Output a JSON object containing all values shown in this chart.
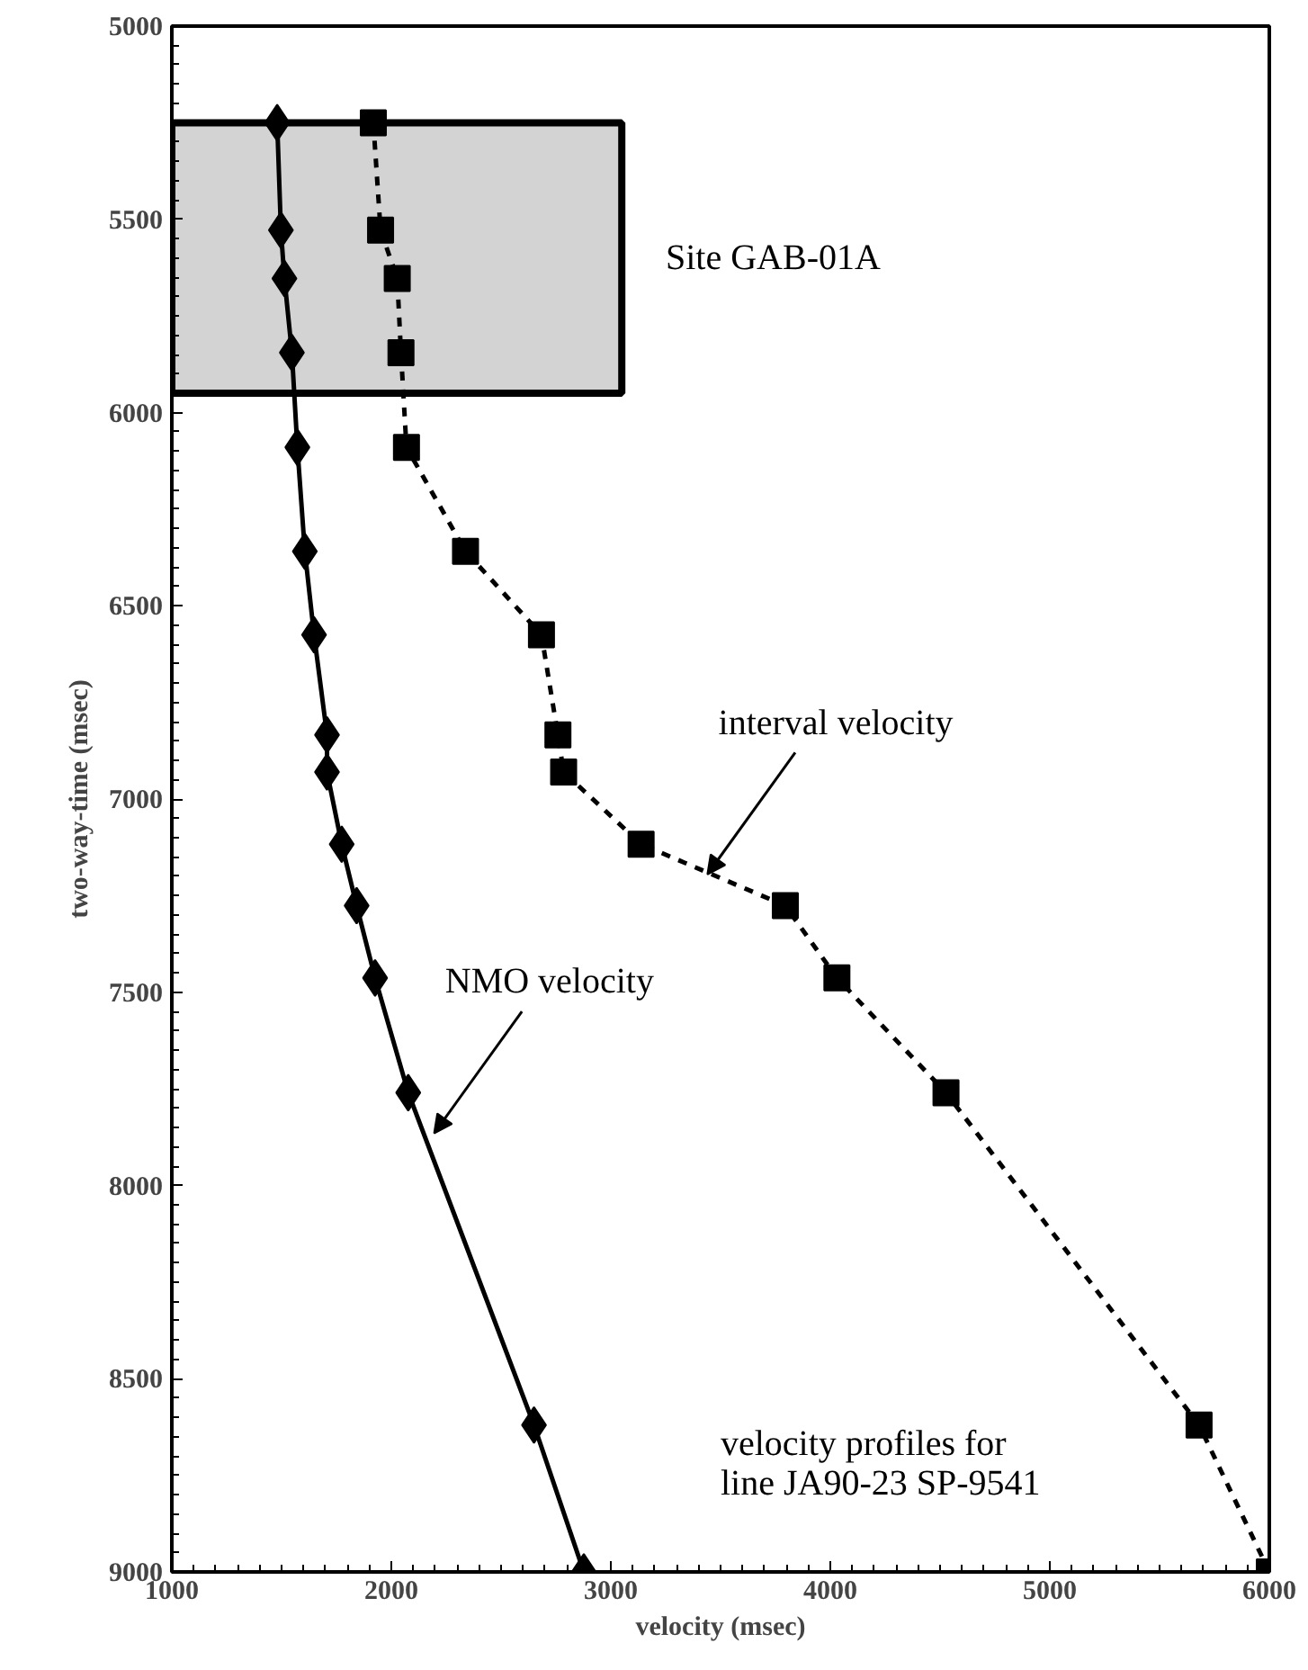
{
  "chart_data": {
    "type": "line",
    "xlabel": "velocity (msec)",
    "ylabel": "two-way-time (msec)",
    "xlim": [
      1000,
      6000
    ],
    "xticks": [
      1000,
      2000,
      3000,
      4000,
      5000,
      6000
    ],
    "ylim": [
      9000,
      5000
    ],
    "yticks": [
      5000,
      5500,
      6000,
      6500,
      7000,
      7500,
      8000,
      8500,
      9000
    ],
    "grid": false,
    "series": [
      {
        "color": "#000000",
        "marker": "diamond",
        "line_style": "solid",
        "x": [
          1480,
          1497,
          1513,
          1547,
          1572,
          1606,
          1648,
          1707,
          1707,
          1774,
          1842,
          1926,
          2077,
          2650,
          2877
        ],
        "values": [
          5250,
          5528,
          5653,
          5845,
          6090,
          6359,
          6575,
          6834,
          6930,
          7117,
          7276,
          7463,
          7760,
          8620,
          9000
        ]
      },
      {
        "color": "#000000",
        "marker": "square",
        "line_style": "dashed",
        "x": [
          1918,
          1951,
          2027,
          2044,
          2069,
          2338,
          2684,
          2759,
          2785,
          3138,
          3795,
          4030,
          4527,
          5680,
          6000
        ],
        "values": [
          5250,
          5528,
          5653,
          5845,
          6090,
          6359,
          6575,
          6834,
          6930,
          7117,
          7276,
          7463,
          7760,
          8620,
          9000
        ]
      }
    ],
    "bands": [
      {
        "axis": "y",
        "from": 5250,
        "to": 5950,
        "label": "Site GAB-01A",
        "color": "#d3d3d3"
      }
    ],
    "annotations": [
      {
        "text": "interval velocity",
        "x": 3440,
        "y": 7195
      },
      {
        "text": "NMO velocity",
        "x": 2195,
        "y": 7865
      },
      "velocity profiles for\nline JA90-23 SP-9541"
    ]
  }
}
